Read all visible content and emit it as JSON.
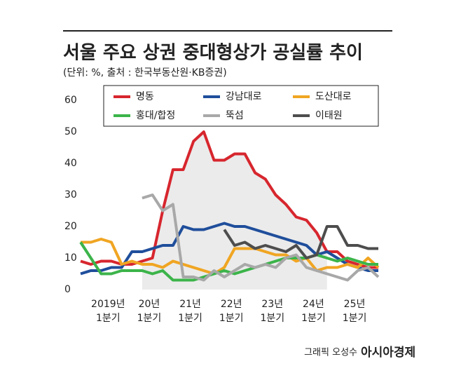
{
  "chart_data": {
    "type": "line",
    "title": "서울 주요 상권 중대형상가 공실률 추이",
    "subtitle": "(단위: %, 출처 : 한국부동산원·KB증권)",
    "credit": "그래픽 오성수",
    "brand": "아시아경제",
    "categories": [
      null,
      null,
      "2019년\n1분기",
      null,
      null,
      null,
      "20년\n1분기",
      null,
      null,
      null,
      "21년\n1분기",
      null,
      null,
      null,
      "22년\n1분기",
      null,
      null,
      null,
      "23년\n1분기",
      null,
      null,
      null,
      "24년\n1분기",
      null,
      null,
      null,
      "25년\n1분기",
      null,
      null,
      null
    ],
    "ylim": [
      0,
      60
    ],
    "yticks": [
      0,
      10,
      20,
      30,
      40,
      50,
      60
    ],
    "series": [
      {
        "name": "명동",
        "color": "#d7262e",
        "values": [
          9,
          8,
          9,
          9,
          8,
          8,
          9,
          10,
          25,
          38,
          38,
          47,
          50,
          41,
          41,
          43,
          43,
          37,
          35,
          30,
          27,
          23,
          22,
          18,
          12,
          12,
          9,
          8,
          7,
          7
        ]
      },
      {
        "name": "강남대로",
        "color": "#1f4e9b",
        "values": [
          5,
          6,
          6,
          7,
          7,
          12,
          12,
          13,
          14,
          14,
          20,
          19,
          19,
          20,
          21,
          20,
          20,
          19,
          18,
          17,
          16,
          15,
          14,
          11,
          12,
          10,
          8,
          7,
          6,
          6
        ]
      },
      {
        "name": "도산대로",
        "color": "#f0a522",
        "values": [
          15,
          15,
          16,
          15,
          8,
          9,
          8,
          8,
          7,
          9,
          8,
          7,
          6,
          5,
          7,
          13,
          13,
          13,
          12,
          11,
          11,
          9,
          10,
          6,
          7,
          7,
          8,
          7,
          10,
          7
        ]
      },
      {
        "name": "홍대/합정",
        "color": "#3cb44a",
        "values": [
          15,
          10,
          5,
          5,
          6,
          6,
          6,
          5,
          6,
          3,
          3,
          3,
          4,
          5,
          6,
          5,
          6,
          7,
          8,
          9,
          10,
          10,
          10,
          11,
          10,
          9,
          10,
          9,
          8,
          8
        ]
      },
      {
        "name": "뚝섬",
        "color": "#a8a8a8",
        "values": [
          null,
          null,
          null,
          null,
          null,
          null,
          29,
          30,
          25,
          27,
          4,
          4,
          3,
          6,
          4,
          6,
          8,
          7,
          8,
          7,
          10,
          11,
          7,
          6,
          5,
          4,
          3,
          6,
          7,
          4
        ]
      },
      {
        "name": "이태원",
        "color": "#4d4d4d",
        "values": [
          null,
          null,
          null,
          null,
          null,
          null,
          null,
          null,
          null,
          null,
          null,
          null,
          null,
          null,
          19,
          14,
          15,
          13,
          14,
          13,
          12,
          14,
          10,
          11,
          20,
          20,
          14,
          14,
          13,
          13
        ]
      }
    ]
  }
}
